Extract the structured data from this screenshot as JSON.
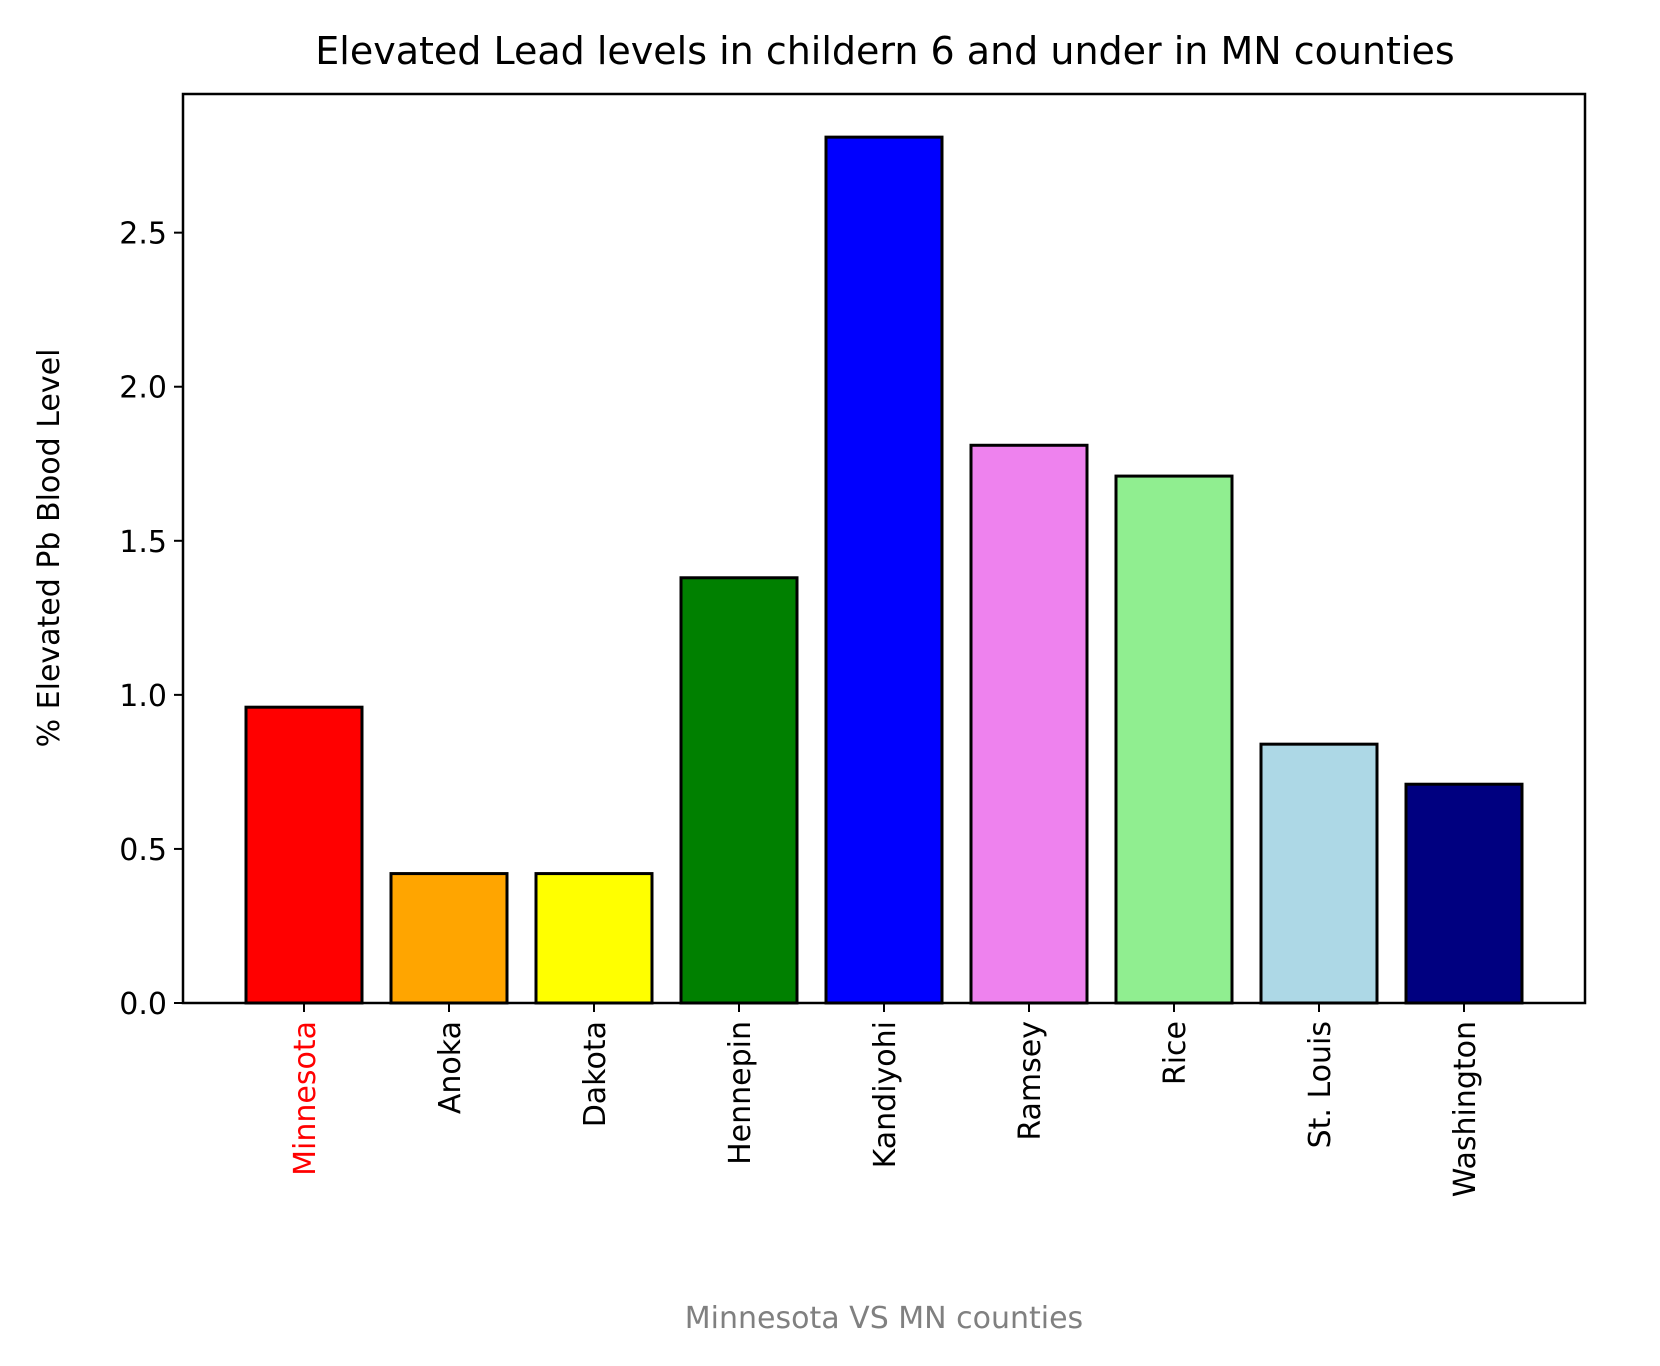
{
  "chart_data": {
    "type": "bar",
    "title": "Elevated Lead levels in childern 6 and under in MN counties",
    "xlabel": "Minnesota VS MN counties",
    "ylabel": "% Elevated Pb Blood Level",
    "categories": [
      "Minnesota",
      "Anoka",
      "Dakota",
      "Hennepin",
      "Kandiyohi",
      "Ramsey",
      "Rice",
      "St. Louis",
      "Washington"
    ],
    "values": [
      0.96,
      0.42,
      0.42,
      1.38,
      2.81,
      1.81,
      1.71,
      0.84,
      0.71
    ],
    "bar_colors": [
      "#ff0000",
      "#ffa500",
      "#ffff00",
      "#008000",
      "#0000ff",
      "#ee82ee",
      "#90ee90",
      "#add8e6",
      "#000080"
    ],
    "tick_label_colors": [
      "#ff0000",
      "#000000",
      "#000000",
      "#000000",
      "#000000",
      "#000000",
      "#000000",
      "#000000",
      "#000000"
    ],
    "xlabel_color": "#808080",
    "bar_edge_color": "#000000",
    "yticks": [
      "0.0",
      "0.5",
      "1.0",
      "1.5",
      "2.0",
      "2.5"
    ],
    "ylim": [
      0,
      2.95
    ],
    "grid": false,
    "legend": false
  }
}
